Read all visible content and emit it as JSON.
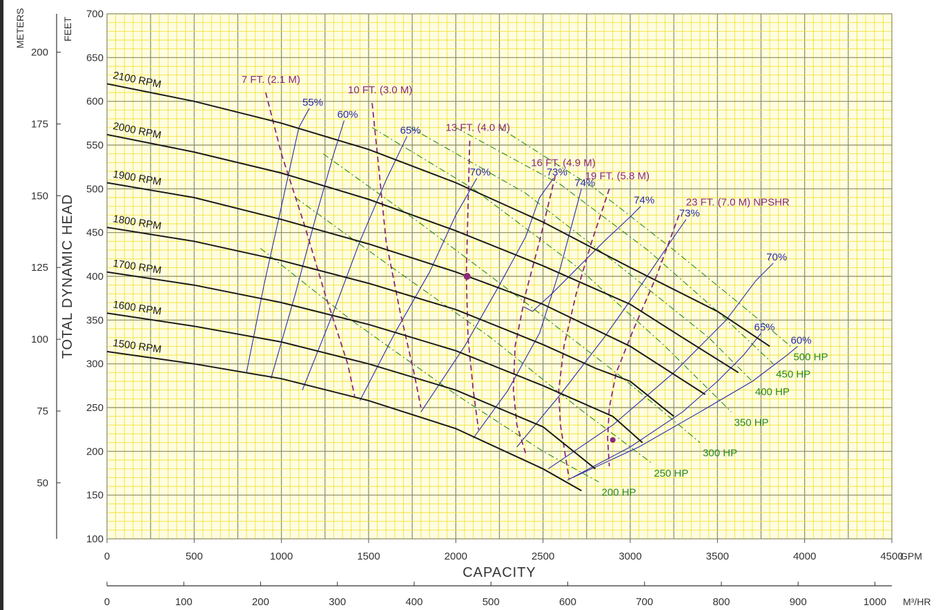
{
  "chart_data": {
    "type": "line",
    "title": "",
    "xlabel": "CAPACITY",
    "ylabel": "TOTAL DYNAMIC HEAD",
    "x_unit": "GPM",
    "y_unit_left": "FEET",
    "y_unit_outer": "METERS",
    "x2_unit": "M³/HR",
    "xlim": [
      0,
      4500
    ],
    "ylim": [
      100,
      700
    ],
    "grid": true,
    "colors": {
      "grid_bg": "#fefde0",
      "grid_fine": "#f2e23a",
      "grid_major": "#8a8a60",
      "head": "#1a1a1a",
      "efficiency": "#2b2ba8",
      "npsh": "#8a2a7a",
      "hp": "#2a8a1a"
    },
    "x_ticks": [
      "0",
      "500",
      "1000",
      "1500",
      "2000",
      "2500",
      "3000",
      "3500",
      "4000",
      "4500"
    ],
    "y_ticks_ft": [
      "100",
      "150",
      "200",
      "250",
      "300",
      "350",
      "400",
      "450",
      "500",
      "550",
      "600",
      "650",
      "700"
    ],
    "y_ticks_m": [
      "50",
      "75",
      "100",
      "125",
      "150",
      "175",
      "200"
    ],
    "x2_ticks": [
      "0",
      "100",
      "200",
      "300",
      "400",
      "500",
      "600",
      "700",
      "800",
      "900",
      "1000"
    ],
    "series": [
      {
        "name": "2100 RPM",
        "x": [
          0,
          500,
          1000,
          1500,
          2000,
          2500,
          3000,
          3500,
          3800
        ],
        "y": [
          620,
          600,
          575,
          545,
          507,
          462,
          410,
          360,
          320
        ]
      },
      {
        "name": "2000 RPM",
        "x": [
          0,
          500,
          1000,
          1500,
          2000,
          2500,
          3000,
          3300,
          3620
        ],
        "y": [
          562,
          542,
          518,
          488,
          452,
          412,
          368,
          330,
          290
        ]
      },
      {
        "name": "1900 RPM",
        "x": [
          0,
          500,
          1000,
          1500,
          2000,
          2500,
          3000,
          3430
        ],
        "y": [
          507,
          490,
          465,
          437,
          405,
          368,
          320,
          265
        ]
      },
      {
        "name": "1800 RPM",
        "x": [
          0,
          500,
          1000,
          1500,
          2000,
          2500,
          2800,
          3000,
          3250
        ],
        "y": [
          456,
          440,
          418,
          392,
          362,
          322,
          295,
          280,
          240
        ]
      },
      {
        "name": "1700 RPM",
        "x": [
          0,
          500,
          1000,
          1500,
          2000,
          2500,
          2900,
          3070
        ],
        "y": [
          405,
          390,
          370,
          345,
          315,
          275,
          240,
          210
        ]
      },
      {
        "name": "1600 RPM",
        "x": [
          0,
          500,
          1000,
          1500,
          2000,
          2500,
          2800
        ],
        "y": [
          358,
          343,
          325,
          300,
          270,
          228,
          180
        ]
      },
      {
        "name": "1500 RPM",
        "x": [
          0,
          500,
          1000,
          1500,
          2000,
          2500,
          2720
        ],
        "y": [
          314,
          300,
          283,
          258,
          226,
          180,
          155
        ]
      }
    ],
    "efficiency_curves": [
      {
        "name": "55%",
        "x": [
          800,
          900,
          1000,
          1100,
          1160
        ],
        "y": [
          290,
          390,
          480,
          570,
          592
        ]
      },
      {
        "name": "60%",
        "x": [
          940,
          1080,
          1200,
          1300,
          1360
        ],
        "y": [
          283,
          380,
          470,
          540,
          578
        ]
      },
      {
        "name": "65%",
        "x": [
          1120,
          1300,
          1450,
          1600,
          1720
        ],
        "y": [
          270,
          360,
          440,
          510,
          560
        ]
      },
      {
        "name": "70%",
        "x": [
          1450,
          1650,
          1850,
          2000,
          2120
        ],
        "y": [
          258,
          335,
          405,
          470,
          512
        ]
      },
      {
        "name": "73%",
        "x": [
          1800,
          2050,
          2250,
          2400,
          2480,
          2560
        ],
        "y": [
          245,
          320,
          390,
          445,
          490,
          512
        ]
      },
      {
        "name": "74%",
        "x": [
          2390,
          2440,
          2550,
          2700,
          2850,
          3000,
          3060
        ],
        "y": [
          365,
          360,
          380,
          410,
          440,
          468,
          480
        ]
      },
      {
        "name": "74% ",
        "x": [
          2100,
          2300,
          2480,
          2600,
          2720
        ],
        "y": [
          215,
          270,
          335,
          410,
          500
        ]
      },
      {
        "name": "73% ",
        "x": [
          2350,
          2600,
          2850,
          3080,
          3250,
          3320
        ],
        "y": [
          205,
          265,
          330,
          395,
          445,
          465
        ]
      },
      {
        "name": "70% ",
        "x": [
          2530,
          2900,
          3250,
          3550,
          3720,
          3820
        ],
        "y": [
          180,
          230,
          290,
          350,
          395,
          415
        ]
      },
      {
        "name": "65% ",
        "x": [
          2640,
          3000,
          3300,
          3500,
          3650,
          3750
        ],
        "y": [
          167,
          205,
          245,
          280,
          310,
          335
        ]
      },
      {
        "name": "60% ",
        "x": [
          2670,
          3050,
          3400,
          3700,
          3900,
          3960
        ],
        "y": [
          170,
          205,
          245,
          280,
          310,
          320
        ]
      }
    ],
    "npsh_curves": [
      {
        "name": "7 FT. (2.1 M)",
        "x": [
          910,
          1000,
          1130,
          1250,
          1380,
          1420
        ],
        "y": [
          610,
          540,
          460,
          380,
          300,
          263
        ]
      },
      {
        "name": "10 FT. (3.0 M)",
        "x": [
          1520,
          1560,
          1600,
          1680,
          1760,
          1800
        ],
        "y": [
          598,
          520,
          440,
          360,
          290,
          250
        ]
      },
      {
        "name": "13 FT. (4.0 M)",
        "x": [
          2080,
          2070,
          2060,
          2070,
          2100,
          2130
        ],
        "y": [
          555,
          480,
          400,
          330,
          270,
          225
        ]
      },
      {
        "name": "16 FT. (4.9 M)",
        "x": [
          2570,
          2480,
          2400,
          2340,
          2330,
          2350,
          2400
        ],
        "y": [
          515,
          440,
          380,
          320,
          270,
          230,
          198
        ]
      },
      {
        "name": "19 FT. (5.8 M)",
        "x": [
          2880,
          2780,
          2690,
          2620,
          2590,
          2600,
          2650
        ],
        "y": [
          500,
          440,
          380,
          320,
          270,
          230,
          168
        ]
      },
      {
        "name": "23 FT. (7.0 M) NPSHR",
        "x": [
          3280,
          3150,
          3020,
          2920,
          2880,
          2870,
          2880
        ],
        "y": [
          470,
          400,
          340,
          290,
          250,
          215,
          183
        ]
      }
    ],
    "hp_curves": [
      {
        "name": "200 HP",
        "x": [
          880,
          1400,
          2000,
          2500,
          2820
        ],
        "y": [
          432,
          350,
          265,
          200,
          165
        ]
      },
      {
        "name": "250 HP",
        "x": [
          1080,
          1600,
          2200,
          2700,
          3120
        ],
        "y": [
          490,
          415,
          330,
          250,
          187
        ]
      },
      {
        "name": "300 HP",
        "x": [
          1240,
          1800,
          2400,
          2950,
          3400
        ],
        "y": [
          540,
          460,
          370,
          285,
          210
        ]
      },
      {
        "name": "350 HP",
        "x": [
          1520,
          2100,
          2700,
          3200,
          3580
        ],
        "y": [
          570,
          500,
          410,
          320,
          245
        ]
      },
      {
        "name": "400 HP",
        "x": [
          1740,
          2400,
          2950,
          3450,
          3700
        ],
        "y": [
          570,
          495,
          410,
          330,
          280
        ]
      },
      {
        "name": "450 HP",
        "x": [
          2000,
          2600,
          3100,
          3500,
          3820
        ],
        "y": [
          570,
          505,
          430,
          360,
          300
        ]
      },
      {
        "name": "500 HP",
        "x": [
          2250,
          2800,
          3250,
          3650,
          3920
        ],
        "y": [
          570,
          500,
          430,
          365,
          320
        ]
      }
    ],
    "operating_points": [
      {
        "x": 2065,
        "y": 400
      },
      {
        "x": 2900,
        "y": 213
      }
    ]
  }
}
